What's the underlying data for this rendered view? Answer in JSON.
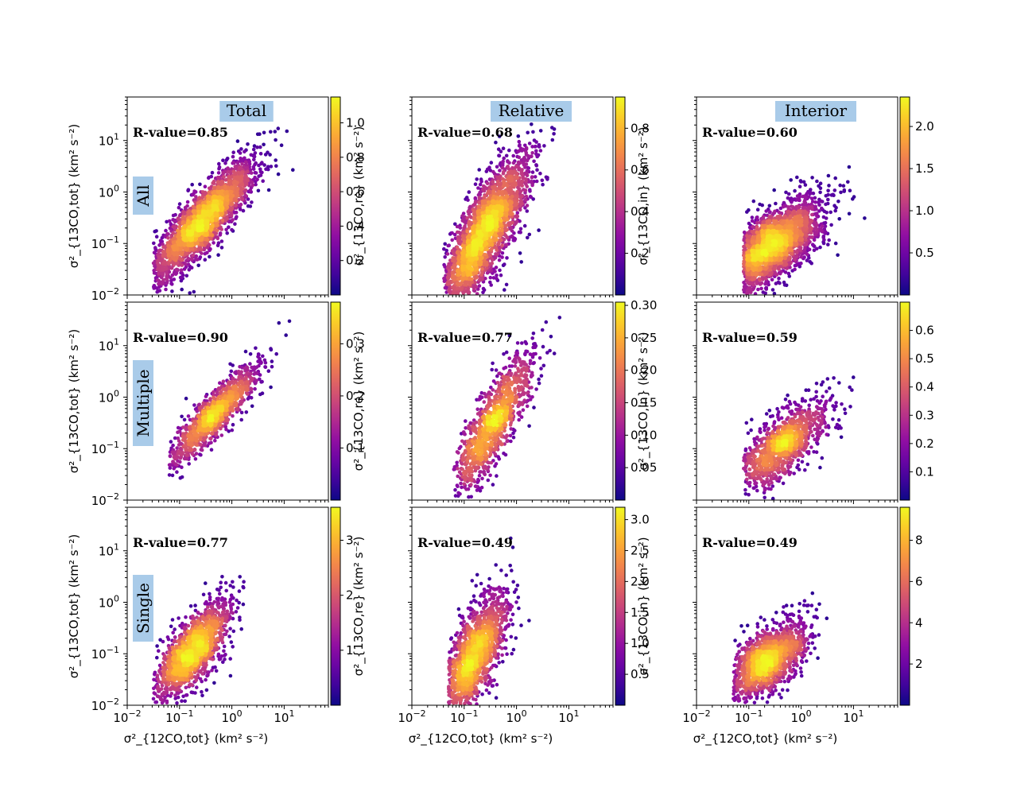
{
  "figure": {
    "column_titles": [
      "Total",
      "Relative",
      "Interior"
    ],
    "row_labels": [
      "All",
      "Multiple",
      "Single"
    ],
    "label_box_color": "#a9cbe9",
    "colormap": "plasma"
  },
  "chart_data": {
    "type": "scatter",
    "layout": "3x3 grid of density-colored log-log scatter panels",
    "xscale": "log",
    "yscale": "log",
    "xlim": [
      0.01,
      70
    ],
    "x_ticks": [
      "10^-2",
      "10^-1",
      "10^0",
      "10^1"
    ],
    "xlabel": "σ²_{12CO,tot} (km² s⁻²)",
    "ylabels": [
      "σ²_{13CO,tot} (km² s⁻²)",
      "σ²_{13CO,re} (km² s⁻²)",
      "σ²_{13CO,in} (km² s⁻²)"
    ],
    "panels": [
      {
        "row": "All",
        "column": "Total",
        "r_value": "R-value=0.85",
        "ylim": [
          0.01,
          70
        ],
        "y_ticks": [
          "10^-2",
          "10^-1",
          "10^0",
          "10^1"
        ],
        "colorbar_ticks": [
          "0.2",
          "0.4",
          "0.6",
          "0.8",
          "1.0"
        ],
        "colorbar_range": [
          0,
          1.15
        ],
        "cloud": {
          "slope": 1.0,
          "intercept": 0.0,
          "scatter": 0.3,
          "x_center": -0.55,
          "x_spread": 0.5,
          "x_range": [
            -1.5,
            1.65
          ],
          "n": 2300
        }
      },
      {
        "row": "All",
        "column": "Relative",
        "r_value": "R-value=0.68",
        "ylim": [
          0.01,
          70
        ],
        "y_ticks": [],
        "colorbar_ticks": [
          "0.2",
          "0.4",
          "0.6",
          "0.8"
        ],
        "colorbar_range": [
          0,
          0.95
        ],
        "cloud": {
          "slope": 1.4,
          "intercept": 0.05,
          "scatter": 0.45,
          "x_center": -0.65,
          "x_spread": 0.45,
          "x_range": [
            -1.4,
            1.65
          ],
          "n": 2300
        }
      },
      {
        "row": "All",
        "column": "Interior",
        "r_value": "R-value=0.60",
        "ylim": [
          0.01,
          70
        ],
        "y_ticks": [],
        "colorbar_ticks": [
          "0.5",
          "1.0",
          "1.5",
          "2.0"
        ],
        "colorbar_range": [
          0,
          2.35
        ],
        "cloud": {
          "slope": 0.6,
          "intercept": -0.7,
          "scatter": 0.33,
          "x_center": -0.6,
          "x_spread": 0.48,
          "x_range": [
            -1.1,
            1.65
          ],
          "n": 2300
        }
      },
      {
        "row": "Multiple",
        "column": "Total",
        "r_value": "R-value=0.90",
        "ylim": [
          0.01,
          70
        ],
        "y_ticks": [
          "10^-2",
          "10^-1",
          "10^0",
          "10^1"
        ],
        "colorbar_ticks": [
          "0.1",
          "0.2",
          "0.3"
        ],
        "colorbar_range": [
          0,
          0.38
        ],
        "cloud": {
          "slope": 1.0,
          "intercept": 0.0,
          "scatter": 0.22,
          "x_center": -0.35,
          "x_spread": 0.45,
          "x_range": [
            -1.2,
            1.65
          ],
          "n": 1100
        }
      },
      {
        "row": "Multiple",
        "column": "Relative",
        "r_value": "R-value=0.77",
        "ylim": [
          0.01,
          70
        ],
        "y_ticks": [],
        "colorbar_ticks": [
          "0.05",
          "0.10",
          "0.15",
          "0.20",
          "0.25",
          "0.30"
        ],
        "colorbar_range": [
          0,
          0.305
        ],
        "cloud": {
          "slope": 1.5,
          "intercept": 0.15,
          "scatter": 0.38,
          "x_center": -0.45,
          "x_spread": 0.4,
          "x_range": [
            -1.2,
            1.65
          ],
          "n": 1100
        }
      },
      {
        "row": "Multiple",
        "column": "Interior",
        "r_value": "R-value=0.59",
        "ylim": [
          0.01,
          70
        ],
        "y_ticks": [],
        "colorbar_ticks": [
          "0.1",
          "0.2",
          "0.3",
          "0.4",
          "0.5",
          "0.6"
        ],
        "colorbar_range": [
          0,
          0.7
        ],
        "cloud": {
          "slope": 0.65,
          "intercept": -0.7,
          "scatter": 0.3,
          "x_center": -0.35,
          "x_spread": 0.45,
          "x_range": [
            -1.1,
            1.65
          ],
          "n": 1100
        }
      },
      {
        "row": "Single",
        "column": "Total",
        "r_value": "R-value=0.77",
        "ylim": [
          0.01,
          70
        ],
        "y_ticks": [
          "10^-2",
          "10^-1",
          "10^0",
          "10^1"
        ],
        "colorbar_ticks": [
          "1",
          "2",
          "3"
        ],
        "colorbar_range": [
          0,
          3.6
        ],
        "cloud": {
          "slope": 1.0,
          "intercept": -0.2,
          "scatter": 0.33,
          "x_center": -0.75,
          "x_spread": 0.35,
          "x_range": [
            -1.5,
            0.85
          ],
          "n": 1500
        }
      },
      {
        "row": "Single",
        "column": "Relative",
        "r_value": "R-value=0.49",
        "ylim": [
          0.01,
          70
        ],
        "y_ticks": [],
        "colorbar_ticks": [
          "0.5",
          "1.0",
          "1.5",
          "2.0",
          "2.5",
          "3.0"
        ],
        "colorbar_range": [
          0,
          3.2
        ],
        "cloud": {
          "slope": 1.3,
          "intercept": 0.0,
          "scatter": 0.45,
          "x_center": -0.85,
          "x_spread": 0.35,
          "x_range": [
            -1.3,
            0.85
          ],
          "n": 1500
        }
      },
      {
        "row": "Single",
        "column": "Interior",
        "r_value": "R-value=0.49",
        "ylim": [
          0.01,
          70
        ],
        "y_ticks": [],
        "colorbar_ticks": [
          "2",
          "4",
          "6",
          "8"
        ],
        "colorbar_range": [
          0,
          9.6
        ],
        "cloud": {
          "slope": 0.6,
          "intercept": -0.75,
          "scatter": 0.3,
          "x_center": -0.65,
          "x_spread": 0.38,
          "x_range": [
            -1.3,
            0.85
          ],
          "n": 1500
        }
      }
    ]
  }
}
